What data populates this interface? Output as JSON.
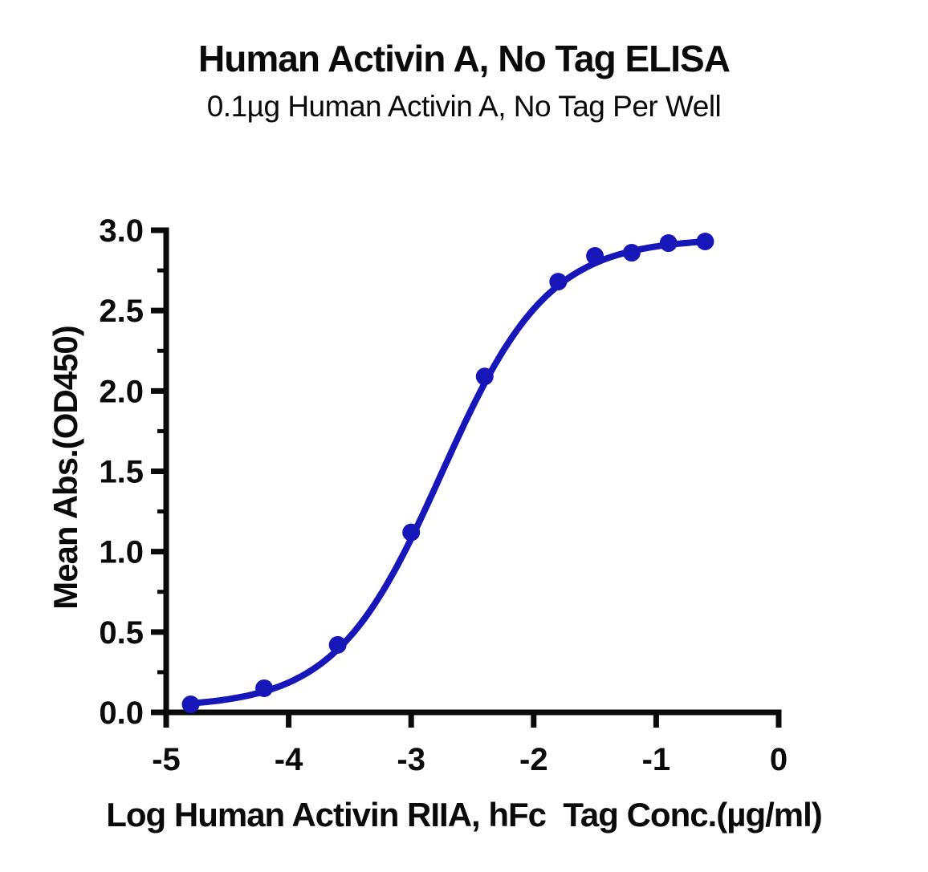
{
  "header": {
    "title": "Human Activin A, No Tag ELISA",
    "subtitle": "0.1µg Human Activin A, No Tag Per Well"
  },
  "chart_data": {
    "type": "scatter",
    "title": "Human Activin A, No Tag ELISA",
    "subtitle": "0.1µg Human Activin A, No Tag Per Well",
    "xlabel": "Log Human Activin RIIA, hFc  Tag Conc.(µg/ml)",
    "ylabel": "Mean Abs.(OD450)",
    "x": [
      -4.8,
      -4.2,
      -3.6,
      -3.0,
      -2.4,
      -1.8,
      -1.5,
      -1.2,
      -0.9,
      -0.6
    ],
    "y": [
      0.05,
      0.15,
      0.42,
      1.12,
      2.09,
      2.68,
      2.84,
      2.86,
      2.92,
      2.93
    ],
    "series_name": "Human Activin RIIA, hFc Tag",
    "xlim": [
      -5,
      0
    ],
    "ylim": [
      0,
      3
    ],
    "xticks": [
      -5,
      -4,
      -3,
      -2,
      -1,
      0
    ],
    "xtick_labels": [
      "-5",
      "-4",
      "-3",
      "-2",
      "-1",
      "0"
    ],
    "yticks_major": [
      0,
      0.5,
      1,
      1.5,
      2,
      2.5,
      3
    ],
    "ytick_labels": [
      "0.0",
      "0.5",
      "1.0",
      "1.5",
      "2.0",
      "2.5",
      "3.0"
    ],
    "yticks_minor": [
      0.25,
      0.75,
      1.25,
      1.75,
      2.25,
      2.75
    ],
    "grid": false,
    "legend": null,
    "fit": {
      "model": "4PL",
      "bottom": 0.03,
      "top": 2.95,
      "logEC50": -2.75,
      "hill": 1.0
    },
    "colors": {
      "curve": "#1717b9",
      "marker": "#1717b9",
      "axis": "#0a0a0a",
      "text": "#0a0a0a"
    }
  }
}
